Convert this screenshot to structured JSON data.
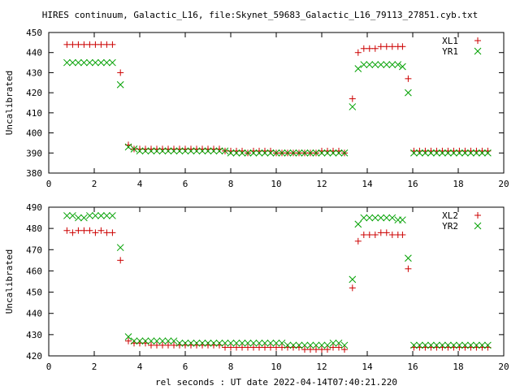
{
  "chart_data": [
    {
      "type": "scatter",
      "title": "HIRES continuum, Galactic_L16, file:Skynet_59683_Galactic_L16_79113_27851.cyb.txt",
      "ylabel": "Uncalibrated",
      "xlabel": "",
      "xlim": [
        0,
        20
      ],
      "ylim": [
        380,
        450
      ],
      "xticks": [
        "0",
        "2",
        "4",
        "6",
        "8",
        "10",
        "12",
        "14",
        "16",
        "18",
        "20"
      ],
      "yticks": [
        "380",
        "390",
        "400",
        "410",
        "420",
        "430",
        "440",
        "450"
      ],
      "legend_position": "top-right",
      "series": [
        {
          "name": "XL1",
          "marker": "plus",
          "color": "#cc0000",
          "x": [
            0.8,
            1.05,
            1.3,
            1.55,
            1.8,
            2.05,
            2.3,
            2.55,
            2.8,
            3.15,
            3.5,
            3.75,
            4.0,
            4.25,
            4.5,
            4.75,
            5.0,
            5.25,
            5.5,
            5.75,
            6.0,
            6.25,
            6.5,
            6.75,
            7.0,
            7.25,
            7.5,
            7.75,
            8.0,
            8.25,
            8.5,
            8.75,
            9.0,
            9.25,
            9.5,
            9.75,
            10.0,
            10.25,
            10.5,
            10.75,
            11.0,
            11.25,
            11.5,
            11.75,
            12.0,
            12.25,
            12.5,
            12.75,
            13.0,
            13.35,
            13.6,
            13.85,
            14.1,
            14.35,
            14.6,
            14.85,
            15.1,
            15.35,
            15.55,
            15.8,
            16.05,
            16.3,
            16.55,
            16.8,
            17.05,
            17.3,
            17.55,
            17.8,
            18.05,
            18.3,
            18.55,
            18.8,
            19.05,
            19.3
          ],
          "y": [
            444,
            444,
            444,
            444,
            444,
            444,
            444,
            444,
            444,
            430,
            394,
            392,
            392,
            392,
            392,
            392,
            392,
            392,
            392,
            392,
            392,
            392,
            392,
            392,
            392,
            392,
            392,
            391,
            391,
            391,
            391,
            390,
            391,
            391,
            391,
            391,
            390,
            390,
            390,
            390,
            390,
            390,
            390,
            390,
            391,
            391,
            391,
            391,
            390,
            417,
            440,
            442,
            442,
            442,
            443,
            443,
            443,
            443,
            443,
            427,
            391,
            391,
            391,
            391,
            391,
            391,
            391,
            391,
            391,
            391,
            391,
            391,
            391,
            391
          ]
        },
        {
          "name": "YR1",
          "marker": "cross",
          "color": "#00a000",
          "x": [
            0.8,
            1.05,
            1.3,
            1.55,
            1.8,
            2.05,
            2.3,
            2.55,
            2.8,
            3.15,
            3.5,
            3.75,
            4.0,
            4.25,
            4.5,
            4.75,
            5.0,
            5.25,
            5.5,
            5.75,
            6.0,
            6.25,
            6.5,
            6.75,
            7.0,
            7.25,
            7.5,
            7.75,
            8.0,
            8.25,
            8.5,
            8.75,
            9.0,
            9.25,
            9.5,
            9.75,
            10.0,
            10.25,
            10.5,
            10.75,
            11.0,
            11.25,
            11.5,
            11.75,
            12.0,
            12.25,
            12.5,
            12.75,
            13.0,
            13.35,
            13.6,
            13.85,
            14.1,
            14.35,
            14.6,
            14.85,
            15.1,
            15.35,
            15.55,
            15.8,
            16.05,
            16.3,
            16.55,
            16.8,
            17.05,
            17.3,
            17.55,
            17.8,
            18.05,
            18.3,
            18.55,
            18.8,
            19.05,
            19.3
          ],
          "y": [
            435,
            435,
            435,
            435,
            435,
            435,
            435,
            435,
            435,
            424,
            393,
            392,
            391,
            391,
            391,
            391,
            391,
            391,
            391,
            391,
            391,
            391,
            391,
            391,
            391,
            391,
            391,
            391,
            390,
            390,
            390,
            390,
            390,
            390,
            390,
            390,
            390,
            390,
            390,
            390,
            390,
            390,
            390,
            390,
            390,
            390,
            390,
            390,
            390,
            413,
            432,
            434,
            434,
            434,
            434,
            434,
            434,
            434,
            433,
            420,
            390,
            390,
            390,
            390,
            390,
            390,
            390,
            390,
            390,
            390,
            390,
            390,
            390,
            390
          ]
        }
      ]
    },
    {
      "type": "scatter",
      "title": "",
      "ylabel": "Uncalibrated",
      "xlabel": "rel seconds : UT date 2022-04-14T07:40:21.220",
      "xlim": [
        0,
        20
      ],
      "ylim": [
        420,
        490
      ],
      "xticks": [
        "0",
        "2",
        "4",
        "6",
        "8",
        "10",
        "12",
        "14",
        "16",
        "18",
        "20"
      ],
      "yticks": [
        "420",
        "430",
        "440",
        "450",
        "460",
        "470",
        "480",
        "490"
      ],
      "legend_position": "top-right",
      "series": [
        {
          "name": "XL2",
          "marker": "plus",
          "color": "#cc0000",
          "x": [
            0.8,
            1.05,
            1.3,
            1.55,
            1.8,
            2.05,
            2.3,
            2.55,
            2.8,
            3.15,
            3.5,
            3.75,
            4.0,
            4.25,
            4.5,
            4.75,
            5.0,
            5.25,
            5.5,
            5.75,
            6.0,
            6.25,
            6.5,
            6.75,
            7.0,
            7.25,
            7.5,
            7.75,
            8.0,
            8.25,
            8.5,
            8.75,
            9.0,
            9.25,
            9.5,
            9.75,
            10.0,
            10.25,
            10.5,
            10.75,
            11.0,
            11.25,
            11.5,
            11.75,
            12.0,
            12.25,
            12.5,
            12.75,
            13.0,
            13.35,
            13.6,
            13.85,
            14.1,
            14.35,
            14.6,
            14.85,
            15.1,
            15.35,
            15.55,
            15.8,
            16.05,
            16.3,
            16.55,
            16.8,
            17.05,
            17.3,
            17.55,
            17.8,
            18.05,
            18.3,
            18.55,
            18.8,
            19.05,
            19.3
          ],
          "y": [
            479,
            478,
            479,
            479,
            479,
            478,
            479,
            478,
            478,
            465,
            427,
            426,
            426,
            426,
            425,
            425,
            425,
            425,
            425,
            425,
            425,
            425,
            425,
            425,
            425,
            425,
            425,
            424,
            424,
            424,
            424,
            424,
            424,
            424,
            424,
            424,
            424,
            424,
            424,
            424,
            424,
            423,
            423,
            423,
            423,
            423,
            424,
            424,
            423,
            452,
            474,
            477,
            477,
            477,
            478,
            478,
            477,
            477,
            477,
            461,
            424,
            424,
            424,
            424,
            424,
            424,
            424,
            424,
            424,
            424,
            424,
            424,
            424,
            424
          ]
        },
        {
          "name": "YR2",
          "marker": "cross",
          "color": "#00a000",
          "x": [
            0.8,
            1.05,
            1.3,
            1.55,
            1.8,
            2.05,
            2.3,
            2.55,
            2.8,
            3.15,
            3.5,
            3.75,
            4.0,
            4.25,
            4.5,
            4.75,
            5.0,
            5.25,
            5.5,
            5.75,
            6.0,
            6.25,
            6.5,
            6.75,
            7.0,
            7.25,
            7.5,
            7.75,
            8.0,
            8.25,
            8.5,
            8.75,
            9.0,
            9.25,
            9.5,
            9.75,
            10.0,
            10.25,
            10.5,
            10.75,
            11.0,
            11.25,
            11.5,
            11.75,
            12.0,
            12.25,
            12.5,
            12.75,
            13.0,
            13.35,
            13.6,
            13.85,
            14.1,
            14.35,
            14.6,
            14.85,
            15.1,
            15.35,
            15.55,
            15.8,
            16.05,
            16.3,
            16.55,
            16.8,
            17.05,
            17.3,
            17.55,
            17.8,
            18.05,
            18.3,
            18.55,
            18.8,
            19.05,
            19.3
          ],
          "y": [
            486,
            486,
            485,
            485,
            486,
            486,
            486,
            486,
            486,
            471,
            429,
            427,
            427,
            427,
            427,
            427,
            427,
            427,
            427,
            426,
            426,
            426,
            426,
            426,
            426,
            426,
            426,
            426,
            426,
            426,
            426,
            426,
            426,
            426,
            426,
            426,
            426,
            426,
            425,
            425,
            425,
            425,
            425,
            425,
            425,
            425,
            426,
            426,
            425,
            456,
            482,
            485,
            485,
            485,
            485,
            485,
            485,
            484,
            484,
            466,
            425,
            425,
            425,
            425,
            425,
            425,
            425,
            425,
            425,
            425,
            425,
            425,
            425,
            425
          ]
        }
      ]
    }
  ]
}
